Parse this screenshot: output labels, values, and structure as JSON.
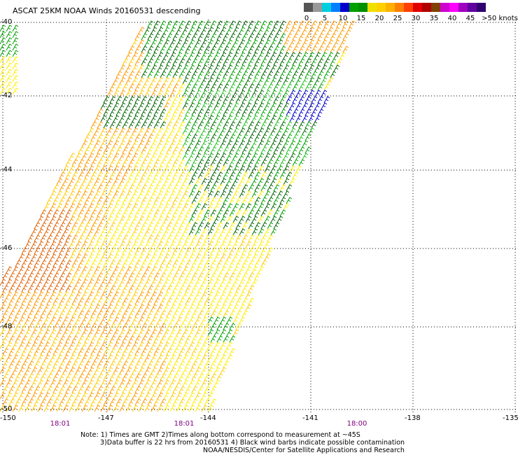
{
  "title": "ASCAT 25KM NOAA Winds 20160531 descending",
  "legend": {
    "labels": [
      "0",
      "5",
      "10",
      "15",
      "20",
      "25",
      "30",
      "35",
      "40",
      "45",
      ">50 knots"
    ],
    "colors": [
      "#555555",
      "#999999",
      "#00cfe0",
      "#0080ff",
      "#0000cc",
      "#00a000",
      "#009000",
      "#f0e000",
      "#ffd000",
      "#ffb000",
      "#ff8000",
      "#ff4000",
      "#e00000",
      "#b00000",
      "#804000",
      "#d000d0",
      "#ff00ff",
      "#a000c0",
      "#6000a0",
      "#300070"
    ]
  },
  "map": {
    "lat_labels": [
      "-40",
      "-42",
      "-44",
      "-46",
      "-48",
      "-50"
    ],
    "lon_labels": [
      "-150",
      "-147",
      "-144",
      "-141",
      "-138",
      "-135"
    ],
    "time_labels": [
      "18:01",
      "18:01",
      "18:00"
    ],
    "grid": "dotted",
    "barb_colors": {
      "dark_green": "#006400",
      "green": "#00a000",
      "light_green": "#22c022",
      "yellow": "#ffee00",
      "gold": "#ffcc00",
      "orange": "#ff9900",
      "dark_orange": "#e06000",
      "blue": "#0000cc",
      "black": "#000000"
    }
  },
  "notes": {
    "line1": "Note: 1) Times are GMT 2)Times along bottom correspond to measurement at ~45S",
    "line2": "3)Data buffer is 22 hrs from 20160531 4) Black wind barbs indicate possible contamination",
    "line3": "NOAA/NESDIS/Center for Satellite Applications and Research"
  }
}
